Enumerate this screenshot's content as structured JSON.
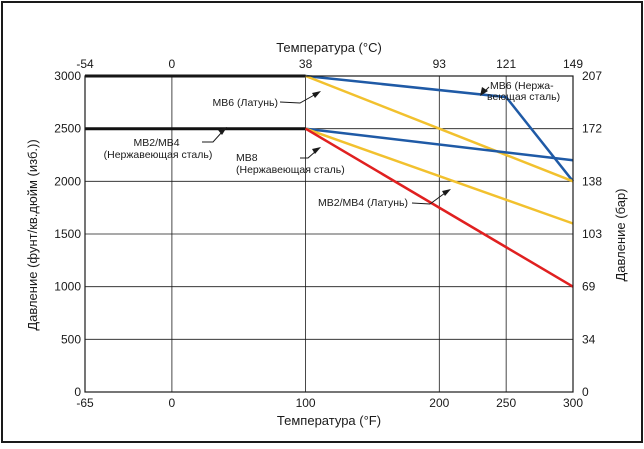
{
  "chart_data": {
    "type": "line",
    "xlabel": "Температура (°F)",
    "x2label": "Температура (°C)",
    "ylabel": "Давление (фунт/кв.дюйм (изб.))",
    "y2label": "Давление (бар)",
    "xlim": [
      -65,
      300
    ],
    "ylim": [
      0,
      3000
    ],
    "grid": true,
    "x_ticks": [
      {
        "v": -65,
        "label": "-65"
      },
      {
        "v": 0,
        "label": "0"
      },
      {
        "v": 100,
        "label": "100"
      },
      {
        "v": 200,
        "label": "200"
      },
      {
        "v": 250,
        "label": "250"
      },
      {
        "v": 300,
        "label": "300"
      }
    ],
    "x2_ticks": [
      {
        "v": -65,
        "label": "-54"
      },
      {
        "v": 0,
        "label": "0"
      },
      {
        "v": 100,
        "label": "38"
      },
      {
        "v": 200,
        "label": "93"
      },
      {
        "v": 250,
        "label": "121"
      },
      {
        "v": 300,
        "label": "149"
      }
    ],
    "y_ticks": [
      {
        "v": 0,
        "label": "0"
      },
      {
        "v": 500,
        "label": "500"
      },
      {
        "v": 1000,
        "label": "1000"
      },
      {
        "v": 1500,
        "label": "1500"
      },
      {
        "v": 2000,
        "label": "2000"
      },
      {
        "v": 2500,
        "label": "2500"
      },
      {
        "v": 3000,
        "label": "3000"
      }
    ],
    "y2_ticks": [
      {
        "v": 0,
        "label": "0"
      },
      {
        "v": 500,
        "label": "34"
      },
      {
        "v": 1000,
        "label": "69"
      },
      {
        "v": 1500,
        "label": "103"
      },
      {
        "v": 2000,
        "label": "138"
      },
      {
        "v": 2500,
        "label": "172"
      },
      {
        "v": 3000,
        "label": "207"
      }
    ],
    "series": [
      {
        "color": "#111111",
        "width": 3,
        "points": [
          [
            -65,
            3000
          ],
          [
            100,
            3000
          ]
        ]
      },
      {
        "color": "#111111",
        "width": 3,
        "points": [
          [
            -65,
            2500
          ],
          [
            100,
            2500
          ]
        ]
      },
      {
        "color": "#1f5aa6",
        "width": 2.5,
        "points": [
          [
            100,
            3000
          ],
          [
            250,
            2800
          ],
          [
            300,
            2000
          ]
        ]
      },
      {
        "color": "#f2c12e",
        "width": 2.5,
        "points": [
          [
            100,
            3000
          ],
          [
            300,
            2000
          ]
        ]
      },
      {
        "color": "#1f5aa6",
        "width": 2.5,
        "points": [
          [
            100,
            2500
          ],
          [
            300,
            2200
          ]
        ]
      },
      {
        "color": "#f2c12e",
        "width": 2.5,
        "points": [
          [
            100,
            2500
          ],
          [
            300,
            1600
          ]
        ]
      },
      {
        "color": "#e02020",
        "width": 2.5,
        "points": [
          [
            100,
            2500
          ],
          [
            300,
            1000
          ]
        ]
      }
    ],
    "annotations": [
      {
        "lines": [
          "MB6 (Латунь)"
        ],
        "anchor": "end"
      },
      {
        "lines": [
          "MB2/MB4",
          "(Нержавеющая сталь)"
        ],
        "anchor": "middle"
      },
      {
        "lines": [
          "MB8",
          "(Нержавеющая сталь)"
        ],
        "anchor": "start"
      },
      {
        "lines": [
          "MB2/MB4 (Латунь)"
        ],
        "anchor": "end"
      },
      {
        "lines": [
          "MB6 (Нержа-",
          "веющая сталь)"
        ],
        "anchor": "start"
      }
    ]
  }
}
